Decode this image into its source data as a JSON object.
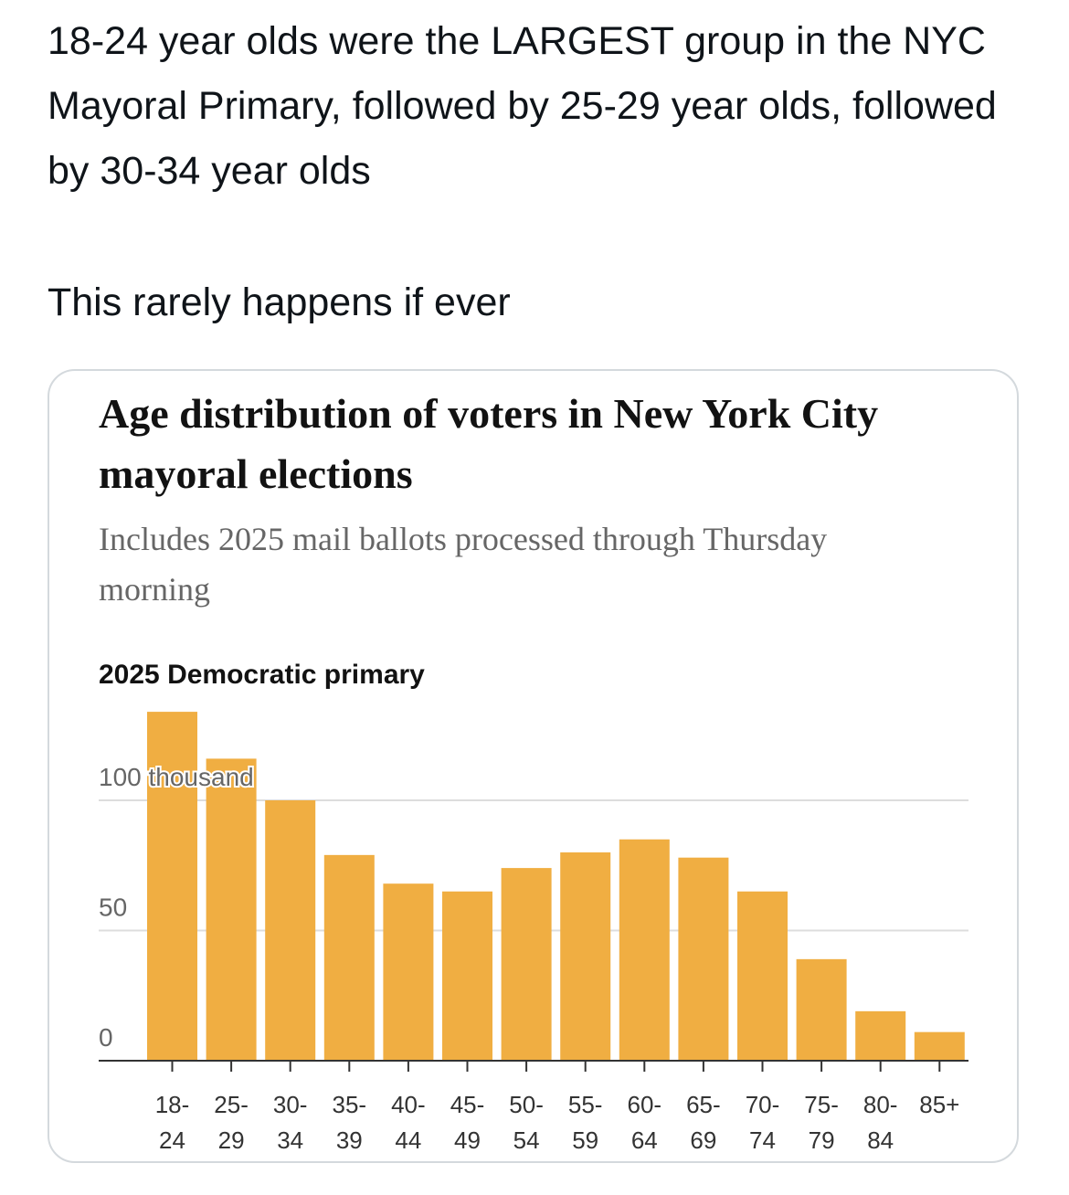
{
  "tweet": {
    "paragraphs": [
      "18-24 year olds were the LARGEST group in the NYC Mayoral Primary, followed by 25-29 year olds, followed by 30-34 year olds",
      "This rarely happens if ever"
    ]
  },
  "chart_data": {
    "type": "bar",
    "title": "Age distribution of voters in New York City mayoral elections",
    "subtitle": "Includes 2025 mail ballots processed through Thursday morning",
    "panel_label": "2025 Democratic primary",
    "categories": [
      "18-\n24",
      "25-\n29",
      "30-\n34",
      "35-\n39",
      "40-\n44",
      "45-\n49",
      "50-\n54",
      "55-\n59",
      "60-\n64",
      "65-\n69",
      "70-\n74",
      "75-\n79",
      "80-\n84",
      "85+"
    ],
    "values": [
      134,
      116,
      100,
      79,
      68,
      65,
      74,
      80,
      85,
      78,
      65,
      39,
      19,
      11
    ],
    "color": "#f0ae42",
    "ylim": [
      0,
      140
    ],
    "yticks": [
      0,
      50,
      {
        "value": 100,
        "label": "100 thousand"
      }
    ],
    "grid": true
  }
}
